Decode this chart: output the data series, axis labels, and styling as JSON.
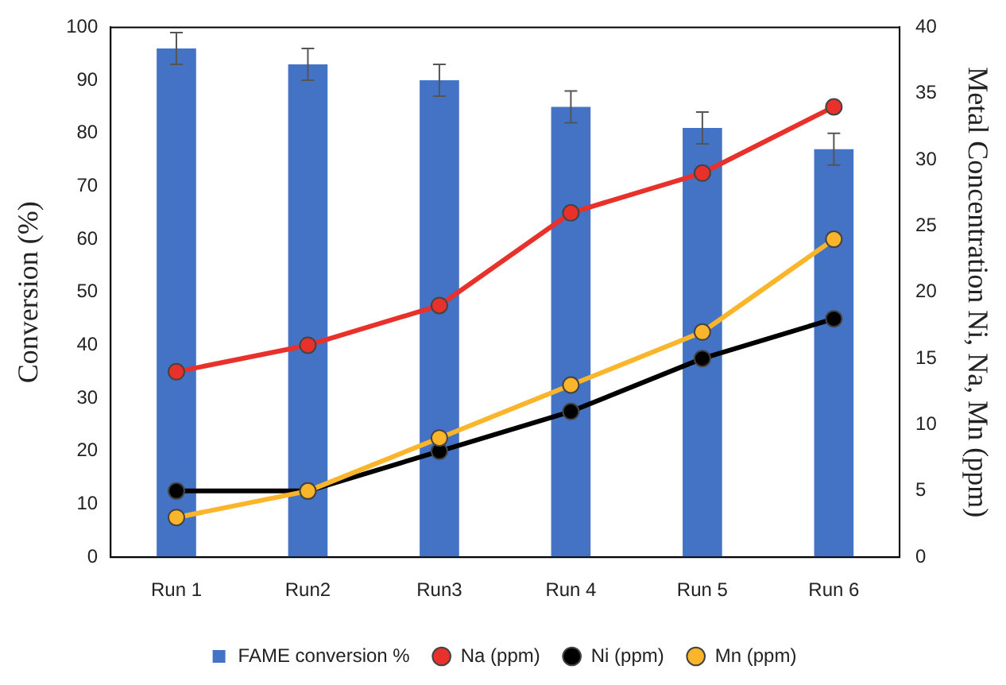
{
  "chart_data": {
    "type": "bar",
    "ylabel": "Conversion (%)",
    "y2label": "Metal Concentration Ni, Na, Mn (ppm)",
    "categories": [
      "Run 1",
      "Run2",
      "Run3",
      "Run 4",
      "Run 5",
      "Run 6"
    ],
    "series": [
      {
        "name": "FAME conversion %",
        "color": "#4472c4",
        "values": [
          96,
          93,
          90,
          85,
          81,
          77
        ],
        "errors": [
          3,
          3,
          3,
          3,
          3,
          3
        ]
      },
      {
        "name": "Na (ppm)",
        "type": "line",
        "axis": "y2",
        "color": "#e8312a",
        "values": [
          14,
          16,
          19,
          26,
          29,
          34
        ]
      },
      {
        "name": "Ni (ppm)",
        "type": "line",
        "axis": "y2",
        "color": "#000000",
        "values": [
          5,
          5,
          8,
          11,
          15,
          18
        ]
      },
      {
        "name": "Mn (ppm)",
        "type": "line",
        "axis": "y2",
        "color": "#fbb52a",
        "values": [
          3,
          5,
          9,
          13,
          17,
          24
        ]
      }
    ],
    "ylim": [
      0,
      100
    ],
    "yticks": [
      0,
      10,
      20,
      30,
      40,
      50,
      60,
      70,
      80,
      90,
      100
    ],
    "y2lim": [
      0,
      40
    ],
    "y2ticks": [
      0,
      5,
      10,
      15,
      20,
      25,
      30,
      35,
      40
    ],
    "grid": false,
    "legend": "bottom",
    "marker": "circle",
    "line_style": "solid"
  }
}
